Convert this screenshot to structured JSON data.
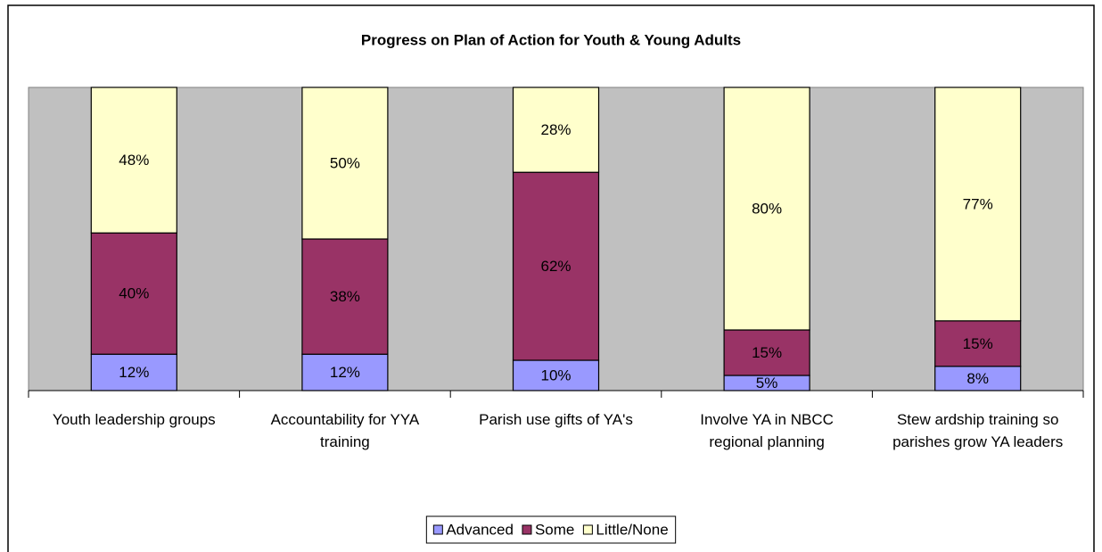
{
  "chart_data": {
    "type": "stacked_bar_100",
    "title": "Progress on Plan of Action for Youth & Young Adults",
    "categories": [
      "Youth leadership groups",
      "Accountability for YYA training",
      "Parish use gifts of YA's",
      "Involve YA in NBCC regional planning",
      "Stew ardship training so parishes grow YA leaders"
    ],
    "series": [
      {
        "name": "Advanced",
        "color": "#9999ff",
        "values": [
          12,
          12,
          10,
          5,
          8
        ],
        "value_labels": [
          "12%",
          "12%",
          "10%",
          "5%",
          "8%"
        ]
      },
      {
        "name": "Some",
        "color": "#993366",
        "values": [
          40,
          38,
          62,
          15,
          15
        ],
        "value_labels": [
          "40%",
          "38%",
          "62%",
          "15%",
          "15%"
        ]
      },
      {
        "name": "Little/None",
        "color": "#ffffcc",
        "values": [
          48,
          50,
          28,
          80,
          77
        ],
        "value_labels": [
          "48%",
          "50%",
          "28%",
          "80%",
          "77%"
        ]
      }
    ],
    "ylim": [
      0,
      100
    ],
    "plot_background": "#c0c0c0",
    "legend": "bottom"
  }
}
